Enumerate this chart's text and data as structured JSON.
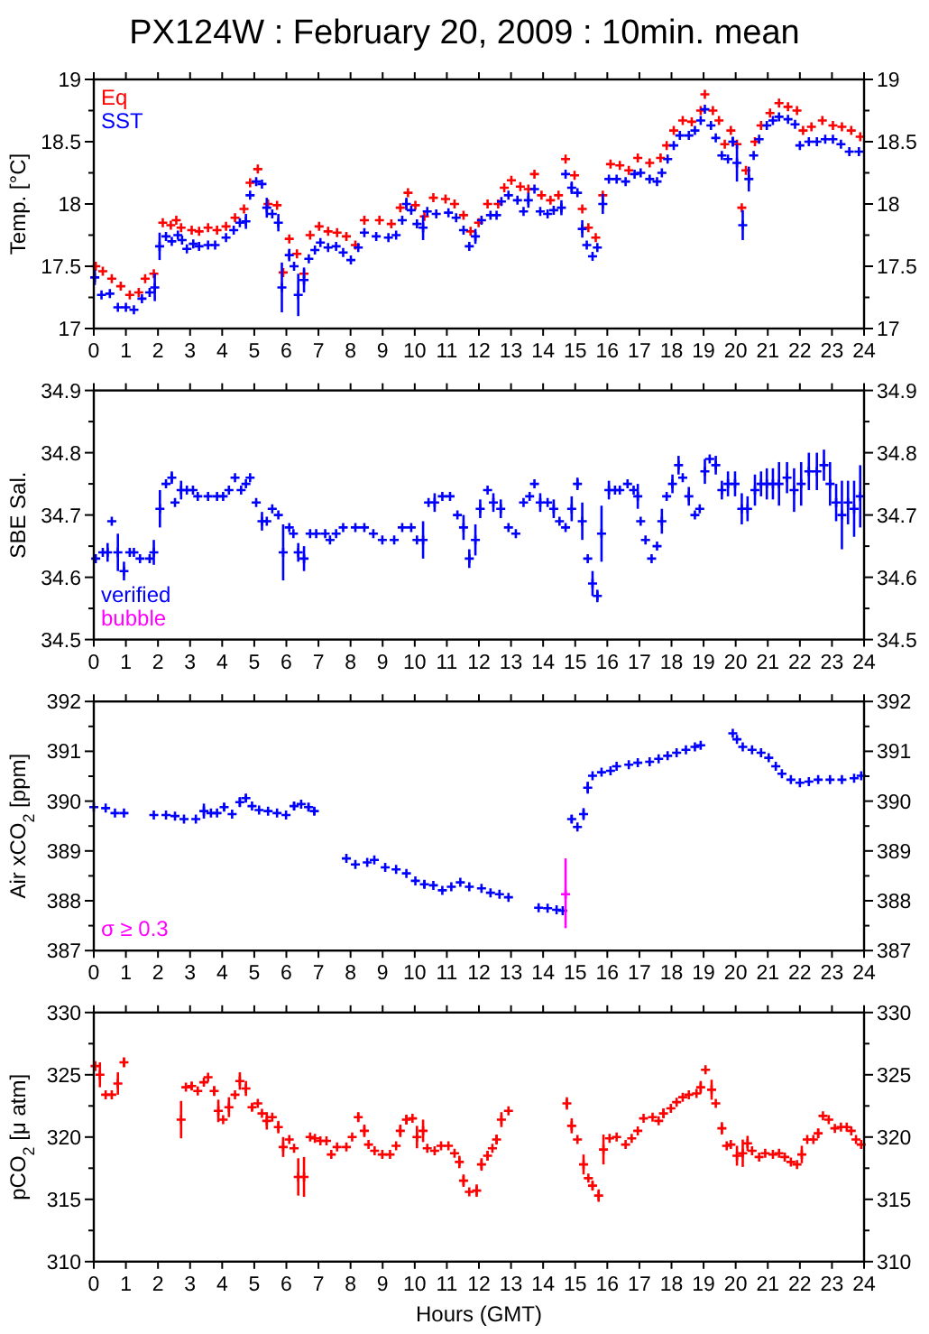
{
  "chart_data": [
    {
      "type": "scatter",
      "title": "PX124W : February 20, 2009 : 10min. mean",
      "ylabel": "Temp. [°C]",
      "marker": "cross",
      "grid": false,
      "legend": "top left",
      "xlim": [
        0,
        24
      ],
      "xticks": [
        0,
        1,
        2,
        3,
        4,
        5,
        6,
        7,
        8,
        9,
        10,
        11,
        12,
        13,
        14,
        15,
        16,
        17,
        18,
        19,
        20,
        21,
        22,
        23,
        24
      ],
      "ylim": [
        17,
        19
      ],
      "yticks": [
        17,
        {
          "value": 17.25,
          "label": null
        },
        17.5,
        {
          "value": 17.75,
          "label": null
        },
        18,
        {
          "value": 18.25,
          "label": null
        },
        18.5,
        {
          "value": 18.75,
          "label": null
        },
        19
      ],
      "y2lim": [
        17,
        19
      ],
      "y2ticks": [
        17,
        {
          "value": 17.25,
          "label": null
        },
        17.5,
        {
          "value": 17.75,
          "label": null
        },
        18,
        {
          "value": 18.25,
          "label": null
        },
        18.5,
        {
          "value": 18.75,
          "label": null
        },
        19
      ],
      "series": [
        {
          "name": "Eq",
          "color": "#ff0000",
          "x": [
            0.06,
            0.28,
            0.56,
            0.84,
            1.12,
            1.4,
            1.6,
            1.87,
            2.15,
            2.4,
            2.57,
            2.72,
            3.05,
            3.28,
            3.56,
            3.84,
            4.12,
            4.4,
            4.68,
            4.87,
            5.11,
            5.43,
            5.71,
            5.9,
            6.09,
            6.33,
            6.55,
            6.74,
            7.02,
            7.3,
            7.58,
            7.87,
            8.15,
            8.43,
            8.9,
            9.27,
            9.55,
            9.79,
            10.02,
            10.3,
            10.58,
            10.96,
            11.24,
            11.52,
            11.74,
            11.99,
            12.27,
            12.6,
            12.79,
            13.01,
            13.29,
            13.54,
            13.73,
            13.95,
            14.23,
            14.48,
            14.7,
            14.98,
            15.22,
            15.41,
            15.64,
            15.86,
            16.1,
            16.39,
            16.67,
            16.95,
            17.32,
            17.66,
            17.85,
            18.07,
            18.35,
            18.63,
            18.91,
            19.04,
            19.29,
            19.48,
            19.66,
            19.85,
            20.04,
            20.19,
            20.32,
            20.6,
            20.79,
            21.07,
            21.35,
            21.63,
            21.91,
            22.1,
            22.36,
            22.7,
            23.03,
            23.31,
            23.6,
            23.88
          ],
          "values": [
            17.5,
            17.46,
            17.4,
            17.34,
            17.27,
            17.29,
            17.4,
            17.44,
            17.85,
            17.83,
            17.87,
            17.81,
            17.79,
            17.78,
            17.81,
            17.79,
            17.82,
            17.89,
            17.96,
            18.17,
            18.28,
            18.0,
            17.99,
            17.45,
            17.72,
            17.6,
            17.44,
            17.75,
            17.82,
            17.78,
            17.77,
            17.74,
            17.67,
            17.87,
            17.87,
            17.84,
            17.97,
            18.09,
            17.99,
            17.9,
            18.05,
            18.04,
            18.0,
            17.91,
            17.78,
            17.85,
            18.0,
            18.0,
            18.13,
            18.19,
            18.14,
            18.12,
            18.24,
            18.07,
            18.03,
            18.07,
            18.36,
            18.23,
            17.96,
            17.81,
            17.73,
            18.07,
            18.32,
            18.31,
            18.27,
            18.37,
            18.33,
            18.37,
            18.47,
            18.59,
            18.67,
            18.66,
            18.75,
            18.88,
            18.75,
            18.67,
            18.48,
            18.59,
            18.48,
            17.97,
            18.27,
            18.5,
            18.63,
            18.73,
            18.81,
            18.78,
            18.75,
            18.59,
            18.62,
            18.67,
            18.63,
            18.62,
            18.59,
            18.54
          ]
        },
        {
          "name": "SST",
          "color": "#0000ff",
          "x": [
            0.03,
            0.24,
            0.5,
            0.75,
            1.0,
            1.25,
            1.5,
            1.74,
            1.9,
            2.05,
            2.25,
            2.43,
            2.62,
            2.75,
            2.9,
            3.1,
            3.28,
            3.56,
            3.78,
            4.12,
            4.36,
            4.55,
            4.74,
            4.87,
            5.06,
            5.24,
            5.39,
            5.56,
            5.75,
            5.86,
            6.09,
            6.24,
            6.37,
            6.55,
            6.7,
            6.89,
            7.06,
            7.3,
            7.55,
            7.77,
            8.01,
            8.24,
            8.43,
            8.8,
            9.18,
            9.42,
            9.61,
            9.74,
            9.89,
            10.07,
            10.26,
            10.39,
            10.67,
            11.05,
            11.29,
            11.52,
            11.7,
            11.89,
            12.08,
            12.36,
            12.55,
            12.7,
            12.92,
            13.2,
            13.39,
            13.54,
            13.73,
            13.91,
            14.14,
            14.33,
            14.57,
            14.7,
            14.89,
            15.07,
            15.22,
            15.36,
            15.54,
            15.69,
            15.86,
            16.05,
            16.29,
            16.57,
            16.85,
            17.04,
            17.32,
            17.55,
            17.7,
            17.88,
            18.07,
            18.26,
            18.54,
            18.73,
            18.91,
            19.04,
            19.23,
            19.38,
            19.57,
            19.76,
            19.91,
            20.04,
            20.22,
            20.41,
            20.56,
            20.73,
            20.97,
            21.16,
            21.35,
            21.63,
            21.85,
            22.0,
            22.28,
            22.53,
            22.79,
            23.03,
            23.28,
            23.54,
            23.84
          ],
          "values": [
            17.41,
            17.27,
            17.28,
            17.17,
            17.17,
            17.15,
            17.24,
            17.29,
            17.33,
            17.66,
            17.74,
            17.7,
            17.75,
            17.71,
            17.64,
            17.68,
            17.66,
            17.67,
            17.67,
            17.73,
            17.79,
            17.85,
            17.86,
            18.07,
            18.18,
            18.16,
            17.97,
            17.92,
            17.85,
            17.33,
            17.59,
            17.5,
            17.27,
            17.39,
            17.56,
            17.63,
            17.69,
            17.65,
            17.66,
            17.61,
            17.55,
            17.65,
            17.77,
            17.74,
            17.73,
            17.75,
            17.87,
            18.0,
            17.95,
            17.84,
            17.81,
            17.94,
            17.92,
            17.93,
            17.89,
            17.79,
            17.66,
            17.74,
            17.87,
            17.91,
            17.91,
            18.02,
            18.07,
            18.03,
            17.94,
            18.03,
            18.12,
            17.94,
            17.92,
            17.95,
            17.97,
            18.24,
            18.13,
            18.09,
            17.8,
            17.67,
            17.58,
            17.65,
            18.0,
            18.2,
            18.2,
            18.18,
            18.24,
            18.25,
            18.2,
            18.18,
            18.25,
            18.36,
            18.47,
            18.55,
            18.55,
            18.59,
            18.67,
            18.76,
            18.63,
            18.53,
            18.39,
            18.36,
            18.5,
            18.33,
            17.83,
            18.2,
            18.39,
            18.52,
            18.63,
            18.67,
            18.7,
            18.68,
            18.64,
            18.47,
            18.5,
            18.5,
            18.52,
            18.52,
            18.48,
            18.42,
            18.42
          ],
          "errors": [
            0.06,
            null,
            null,
            null,
            null,
            null,
            null,
            null,
            0.11,
            0.11,
            null,
            null,
            null,
            null,
            null,
            null,
            null,
            null,
            null,
            null,
            null,
            null,
            0.06,
            null,
            null,
            null,
            0.08,
            null,
            0.07,
            0.2,
            0.05,
            null,
            0.17,
            0.1,
            null,
            null,
            null,
            null,
            null,
            null,
            null,
            null,
            null,
            null,
            null,
            null,
            null,
            0.05,
            null,
            null,
            0.1,
            null,
            null,
            null,
            null,
            null,
            null,
            0.06,
            null,
            null,
            null,
            null,
            null,
            null,
            null,
            0.06,
            null,
            null,
            null,
            null,
            0.06,
            null,
            0.05,
            null,
            0.07,
            null,
            null,
            null,
            0.08,
            null,
            null,
            null,
            null,
            null,
            null,
            null,
            null,
            null,
            null,
            null,
            null,
            null,
            null,
            null,
            null,
            null,
            null,
            null,
            0.04,
            0.15,
            0.12,
            0.1,
            null,
            null,
            null,
            null,
            null,
            null,
            null,
            null,
            null,
            null,
            null,
            null,
            null,
            null,
            null
          ]
        }
      ]
    },
    {
      "type": "scatter",
      "ylabel": "SBE Sal.",
      "marker": "cross",
      "grid": false,
      "legend": "bottom left",
      "xlim": [
        0,
        24
      ],
      "xticks": [
        0,
        1,
        2,
        3,
        4,
        5,
        6,
        7,
        8,
        9,
        10,
        11,
        12,
        13,
        14,
        15,
        16,
        17,
        18,
        19,
        20,
        21,
        22,
        23,
        24
      ],
      "ylim": [
        34.5,
        34.9
      ],
      "yticks": [
        34.5,
        {
          "value": 34.55,
          "label": null
        },
        34.6,
        {
          "value": 34.65,
          "label": null
        },
        34.7,
        {
          "value": 34.75,
          "label": null
        },
        34.8,
        {
          "value": 34.85,
          "label": null
        },
        34.9
      ],
      "y2lim": [
        34.5,
        34.9
      ],
      "y2ticks": [
        34.5,
        {
          "value": 34.55,
          "label": null
        },
        34.6,
        {
          "value": 34.65,
          "label": null
        },
        34.7,
        {
          "value": 34.75,
          "label": null
        },
        34.8,
        {
          "value": 34.85,
          "label": null
        },
        34.9
      ],
      "series": [
        {
          "name": "verified",
          "color": "#0000ff",
          "x": [
            0.06,
            0.28,
            0.43,
            0.56,
            0.75,
            0.94,
            1.12,
            1.25,
            1.44,
            1.74,
            1.87,
            2.06,
            2.25,
            2.43,
            2.53,
            2.72,
            2.9,
            3.09,
            3.24,
            3.56,
            3.84,
            4.03,
            4.21,
            4.4,
            4.59,
            4.74,
            4.87,
            5.06,
            5.24,
            5.39,
            5.56,
            5.75,
            5.9,
            6.09,
            6.22,
            6.37,
            6.55,
            6.74,
            6.93,
            7.21,
            7.36,
            7.55,
            7.77,
            8.15,
            8.43,
            8.71,
            8.99,
            9.36,
            9.61,
            9.89,
            10.07,
            10.26,
            10.43,
            10.62,
            10.86,
            11.1,
            11.33,
            11.52,
            11.7,
            11.89,
            12.04,
            12.27,
            12.45,
            12.68,
            12.92,
            13.15,
            13.39,
            13.58,
            13.73,
            13.91,
            14.14,
            14.33,
            14.51,
            14.7,
            14.89,
            15.07,
            15.22,
            15.39,
            15.54,
            15.69,
            15.82,
            16.05,
            16.24,
            16.39,
            16.63,
            16.82,
            16.95,
            17.04,
            17.19,
            17.38,
            17.55,
            17.7,
            17.85,
            18.03,
            18.22,
            18.35,
            18.54,
            18.73,
            18.88,
            19.04,
            19.19,
            19.38,
            19.57,
            19.76,
            19.98,
            20.19,
            20.37,
            20.6,
            20.79,
            20.97,
            21.16,
            21.35,
            21.6,
            21.82,
            22.04,
            22.28,
            22.53,
            22.75,
            22.94,
            23.13,
            23.31,
            23.5,
            23.69,
            23.88
          ],
          "values": [
            34.63,
            34.64,
            34.64,
            34.69,
            34.64,
            34.61,
            34.64,
            34.64,
            34.63,
            34.63,
            34.64,
            34.71,
            34.75,
            34.76,
            34.72,
            34.74,
            34.74,
            34.74,
            34.73,
            34.73,
            34.73,
            34.73,
            34.74,
            34.76,
            34.74,
            34.75,
            34.76,
            34.72,
            34.69,
            34.69,
            34.71,
            34.7,
            34.64,
            34.68,
            34.67,
            34.64,
            34.63,
            34.67,
            34.67,
            34.67,
            34.66,
            34.67,
            34.68,
            34.68,
            34.68,
            34.67,
            34.66,
            34.66,
            34.68,
            34.68,
            34.66,
            34.66,
            34.72,
            34.72,
            34.73,
            34.73,
            34.7,
            34.68,
            34.63,
            34.66,
            34.71,
            34.74,
            34.72,
            34.71,
            34.68,
            34.67,
            34.72,
            34.73,
            34.75,
            34.72,
            34.72,
            34.71,
            34.69,
            34.68,
            34.71,
            34.75,
            34.69,
            34.63,
            34.59,
            34.57,
            34.67,
            34.74,
            34.74,
            34.74,
            34.75,
            34.74,
            34.73,
            34.69,
            34.66,
            34.63,
            34.65,
            34.69,
            34.73,
            34.75,
            34.78,
            34.76,
            34.73,
            34.7,
            34.71,
            34.77,
            34.79,
            34.78,
            34.74,
            34.75,
            34.75,
            34.71,
            34.71,
            34.74,
            34.75,
            34.75,
            34.75,
            34.75,
            34.76,
            34.74,
            34.75,
            34.77,
            34.77,
            34.78,
            34.75,
            34.72,
            34.7,
            34.72,
            34.71,
            34.73
          ],
          "errors": [
            null,
            null,
            0.015,
            null,
            0.03,
            0.015,
            null,
            null,
            null,
            null,
            0.02,
            0.03,
            null,
            0.01,
            null,
            0.015,
            null,
            null,
            null,
            null,
            null,
            null,
            null,
            null,
            null,
            null,
            null,
            null,
            0.015,
            null,
            null,
            null,
            0.045,
            null,
            null,
            0.015,
            0.02,
            null,
            null,
            null,
            null,
            null,
            null,
            null,
            null,
            null,
            null,
            null,
            null,
            null,
            null,
            0.03,
            null,
            0.015,
            null,
            null,
            null,
            0.02,
            0.015,
            0.025,
            0.015,
            null,
            0.015,
            0.015,
            null,
            null,
            null,
            null,
            null,
            0.015,
            null,
            0.015,
            null,
            null,
            0.02,
            0.01,
            0.03,
            null,
            0.02,
            0.01,
            0.045,
            0.015,
            null,
            null,
            null,
            null,
            0.02,
            null,
            null,
            null,
            null,
            0.02,
            null,
            0.015,
            0.015,
            null,
            0.015,
            null,
            null,
            0.02,
            null,
            0.015,
            0.015,
            0.02,
            0.02,
            0.025,
            0.02,
            0.025,
            0.02,
            0.025,
            0.025,
            0.035,
            0.025,
            0.035,
            0.035,
            0.03,
            0.03,
            0.025,
            0.035,
            0.03,
            0.055,
            0.035,
            0.045,
            0.05
          ]
        },
        {
          "name": "bubble",
          "color": "#ff00ff"
        }
      ]
    },
    {
      "type": "scatter",
      "ylabel": "Air xCO$_{2}$ [ppm]",
      "marker": "cross",
      "grid": false,
      "legend": "bottom left",
      "xlim": [
        0,
        24
      ],
      "xticks": [
        0,
        1,
        2,
        3,
        4,
        5,
        6,
        7,
        8,
        9,
        10,
        11,
        12,
        13,
        14,
        15,
        16,
        17,
        18,
        19,
        20,
        21,
        22,
        23,
        24
      ],
      "ylim": [
        387,
        392
      ],
      "yticks": [
        387,
        {
          "value": 387.5,
          "label": null
        },
        388,
        {
          "value": 388.5,
          "label": null
        },
        389,
        {
          "value": 389.5,
          "label": null
        },
        390,
        {
          "value": 390.5,
          "label": null
        },
        391,
        {
          "value": 391.5,
          "label": null
        },
        392
      ],
      "y2lim": [
        387,
        392
      ],
      "y2ticks": [
        387,
        {
          "value": 387.5,
          "label": null
        },
        388,
        {
          "value": 388.5,
          "label": null
        },
        389,
        {
          "value": 389.5,
          "label": null
        },
        390,
        {
          "value": 390.5,
          "label": null
        },
        391,
        {
          "value": 391.5,
          "label": null
        },
        392
      ],
      "series": [
        {
          "color": "#0000ff",
          "x": [
            0,
            0.37,
            0.66,
            0.94,
            1.87,
            2.25,
            2.53,
            2.81,
            3.18,
            3.43,
            3.65,
            3.84,
            4.06,
            4.31,
            4.55,
            4.74,
            4.93,
            5.15,
            5.43,
            5.71,
            5.99,
            6.24,
            6.46,
            6.69,
            6.87,
            7.87,
            8.15,
            8.52,
            8.74,
            9.08,
            9.42,
            9.74,
            10.02,
            10.3,
            10.58,
            10.86,
            11.14,
            11.42,
            11.7,
            12.08,
            12.36,
            12.64,
            12.92,
            13.86,
            14.14,
            14.42,
            14.61,
            14.89,
            15.07,
            15.26,
            15.39,
            15.54,
            15.82,
            16.1,
            16.29,
            16.67,
            16.95,
            17.32,
            17.6,
            17.88,
            18.16,
            18.45,
            18.73,
            18.91,
            19.91,
            20.04,
            20.22,
            20.51,
            20.79,
            21.03,
            21.25,
            21.44,
            21.72,
            22.0,
            22.28,
            22.57,
            22.94,
            23.31,
            23.69,
            23.91
          ],
          "values": [
            389.88,
            389.86,
            389.76,
            389.76,
            389.72,
            389.72,
            389.7,
            389.64,
            389.64,
            389.8,
            389.76,
            389.76,
            389.88,
            389.74,
            389.98,
            390.06,
            389.9,
            389.82,
            389.8,
            389.76,
            389.72,
            389.9,
            389.94,
            389.88,
            389.8,
            388.85,
            388.73,
            388.77,
            388.82,
            388.67,
            388.63,
            388.55,
            388.4,
            388.33,
            388.31,
            388.21,
            388.28,
            388.37,
            388.28,
            388.25,
            388.16,
            388.13,
            388.07,
            387.86,
            387.85,
            387.82,
            387.8,
            389.64,
            389.48,
            389.74,
            390.27,
            390.51,
            390.58,
            390.61,
            390.7,
            390.73,
            390.77,
            390.79,
            390.85,
            390.91,
            390.97,
            391.03,
            391.09,
            391.12,
            391.36,
            391.24,
            391.09,
            391.03,
            390.97,
            390.87,
            390.7,
            390.55,
            390.43,
            390.37,
            390.39,
            390.43,
            390.43,
            390.43,
            390.46,
            390.51
          ],
          "errors": [
            null,
            null,
            null,
            null,
            null,
            null,
            null,
            null,
            null,
            0.15,
            null,
            null,
            0.08,
            null,
            0.1,
            0.08,
            null,
            null,
            null,
            null,
            null,
            0.08,
            null,
            0.08,
            0.08,
            null,
            null,
            null,
            null,
            null,
            null,
            null,
            null,
            0.08,
            null,
            null,
            null,
            null,
            null,
            null,
            null,
            null,
            null,
            null,
            null,
            null,
            null,
            0.08,
            null,
            0.12,
            0.12,
            null,
            null,
            null,
            null,
            null,
            null,
            null,
            null,
            null,
            null,
            null,
            null,
            null,
            null,
            null,
            null,
            null,
            null,
            null,
            null,
            null,
            null,
            null,
            null,
            null,
            null,
            null,
            null,
            null
          ]
        },
        {
          "name": "σ ≥ 0.3",
          "color": "#ff00ff",
          "x": [
            14.7
          ],
          "values": [
            388.13
          ],
          "errors": [
            [
              387.45,
              388.85
            ]
          ]
        }
      ]
    },
    {
      "type": "scatter",
      "ylabel": "pCO$_{2}$ [μ atm]",
      "xlabel": "Hours (GMT)",
      "marker": "cross",
      "grid": false,
      "xlim": [
        0,
        24
      ],
      "xticks": [
        0,
        1,
        2,
        3,
        4,
        5,
        6,
        7,
        8,
        9,
        10,
        11,
        12,
        13,
        14,
        15,
        16,
        17,
        18,
        19,
        20,
        21,
        22,
        23,
        24
      ],
      "ylim": [
        310,
        330
      ],
      "yticks": [
        310,
        {
          "value": 312.5,
          "label": null
        },
        315,
        {
          "value": 317.5,
          "label": null
        },
        320,
        {
          "value": 322.5,
          "label": null
        },
        325,
        {
          "value": 327.5,
          "label": null
        },
        330
      ],
      "y2lim": [
        310,
        330
      ],
      "y2ticks": [
        310,
        {
          "value": 312.5,
          "label": null
        },
        315,
        {
          "value": 317.5,
          "label": null
        },
        320,
        {
          "value": 322.5,
          "label": null
        },
        325,
        {
          "value": 327.5,
          "label": null
        },
        330
      ],
      "series": [
        {
          "color": "#ff0000",
          "x": [
            0.04,
            0.19,
            0.37,
            0.56,
            0.75,
            0.94,
            2.72,
            2.87,
            3.05,
            3.24,
            3.43,
            3.56,
            3.75,
            3.88,
            4.03,
            4.21,
            4.4,
            4.55,
            4.74,
            4.93,
            5.11,
            5.24,
            5.39,
            5.56,
            5.75,
            5.9,
            6.09,
            6.24,
            6.37,
            6.55,
            6.74,
            6.89,
            7.06,
            7.25,
            7.4,
            7.58,
            7.87,
            8.05,
            8.24,
            8.43,
            8.56,
            8.75,
            8.99,
            9.23,
            9.42,
            9.55,
            9.74,
            9.93,
            10.07,
            10.26,
            10.39,
            10.62,
            10.82,
            11.05,
            11.24,
            11.39,
            11.52,
            11.7,
            11.93,
            12.08,
            12.27,
            12.42,
            12.55,
            12.7,
            12.92,
            14.74,
            14.89,
            15.07,
            15.26,
            15.41,
            15.54,
            15.73,
            15.88,
            16.07,
            16.29,
            16.57,
            16.76,
            16.95,
            17.13,
            17.41,
            17.6,
            17.75,
            17.98,
            18.16,
            18.35,
            18.54,
            18.78,
            18.91,
            19.06,
            19.25,
            19.38,
            19.57,
            19.72,
            19.85,
            20.04,
            20.22,
            20.37,
            20.51,
            20.73,
            20.92,
            21.16,
            21.35,
            21.53,
            21.72,
            21.91,
            22.06,
            22.23,
            22.42,
            22.57,
            22.72,
            22.9,
            23.09,
            23.28,
            23.46,
            23.6,
            23.75,
            23.91
          ],
          "values": [
            325.7,
            325.0,
            323.4,
            323.4,
            324.3,
            326.0,
            321.4,
            324.0,
            324.1,
            323.7,
            324.4,
            324.8,
            323.7,
            322.1,
            321.4,
            322.4,
            323.4,
            324.5,
            323.9,
            322.4,
            322.7,
            321.9,
            321.3,
            321.6,
            320.8,
            319.2,
            319.8,
            319.1,
            316.8,
            316.8,
            320.0,
            319.9,
            319.7,
            319.7,
            318.6,
            319.2,
            319.2,
            320.0,
            321.6,
            320.5,
            319.4,
            318.9,
            318.6,
            318.6,
            319.3,
            320.5,
            321.4,
            321.5,
            320.0,
            320.5,
            319.1,
            318.9,
            319.3,
            319.3,
            318.7,
            318.0,
            316.5,
            315.6,
            315.7,
            317.8,
            318.5,
            319.1,
            319.8,
            321.4,
            322.1,
            322.7,
            320.9,
            319.8,
            317.8,
            316.7,
            316.1,
            315.3,
            319.0,
            319.9,
            320.0,
            319.4,
            319.9,
            320.5,
            321.5,
            321.6,
            321.3,
            321.9,
            322.3,
            322.8,
            323.2,
            323.4,
            323.5,
            324.0,
            325.4,
            323.8,
            322.7,
            320.7,
            319.3,
            319.4,
            318.5,
            318.7,
            319.5,
            318.9,
            318.4,
            318.7,
            318.6,
            318.7,
            318.4,
            318.0,
            317.8,
            318.6,
            319.8,
            319.8,
            320.3,
            321.7,
            321.4,
            320.7,
            320.8,
            320.8,
            320.5,
            319.8,
            319.4
          ],
          "errors": [
            0.4,
            1,
            null,
            null,
            0.9,
            0.4,
            1.5,
            null,
            0.3,
            null,
            null,
            null,
            0.4,
            0.9,
            null,
            0.8,
            null,
            0.7,
            0.6,
            0.3,
            null,
            null,
            0.7,
            null,
            0.5,
            0.8,
            null,
            null,
            1.5,
            1.6,
            null,
            null,
            null,
            null,
            null,
            null,
            null,
            null,
            0.4,
            0.5,
            null,
            null,
            null,
            null,
            null,
            0.5,
            0.4,
            null,
            0.9,
            0.9,
            null,
            null,
            null,
            null,
            null,
            0.5,
            0.5,
            null,
            0.5,
            0.5,
            0.4,
            null,
            0.4,
            0.6,
            null,
            0.5,
            0.6,
            null,
            0.8,
            null,
            0.4,
            0.5,
            1.2,
            null,
            null,
            null,
            null,
            null,
            null,
            null,
            null,
            0.4,
            null,
            null,
            null,
            null,
            null,
            0.5,
            null,
            0.8,
            null,
            0.5,
            null,
            null,
            0.8,
            1.1,
            0.6,
            null,
            null,
            null,
            null,
            null,
            null,
            null,
            null,
            0.7,
            null,
            null,
            0.4,
            null,
            null,
            null,
            null,
            null,
            null,
            null,
            null
          ]
        }
      ]
    }
  ]
}
